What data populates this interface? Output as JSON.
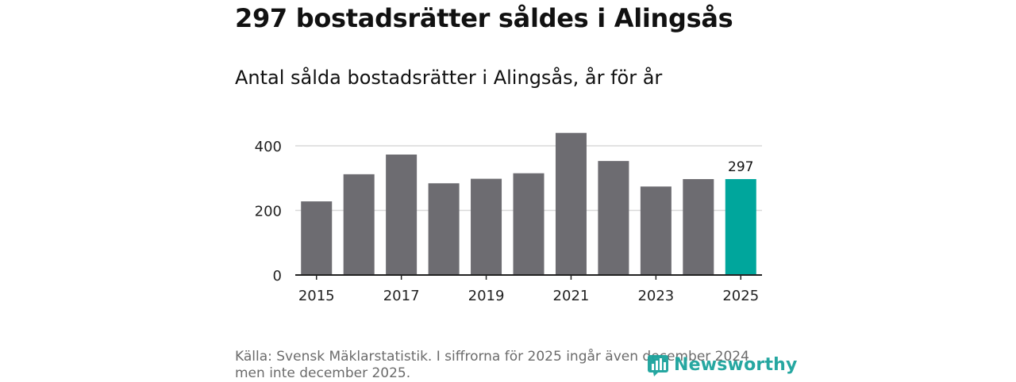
{
  "title": "297 bostadsrätter såldes i Alingsås",
  "subtitle": "Antal sålda bostadsrätter i Alingsås, år för år",
  "source": "Källa: Svensk Mäklarstatistik. I siffrorna för 2025 ingår även december 2024 men inte december 2025.",
  "logo": {
    "text": "Newsworthy",
    "icon": "bar-chart-logo-icon",
    "color": "#1ba39c"
  },
  "chart_data": {
    "type": "bar",
    "categories": [
      "2015",
      "2016",
      "2017",
      "2018",
      "2019",
      "2020",
      "2021",
      "2022",
      "2023",
      "2024",
      "2025"
    ],
    "values": [
      228,
      312,
      373,
      284,
      298,
      315,
      440,
      353,
      274,
      297,
      297
    ],
    "ylim": [
      0,
      400
    ],
    "yticks": [
      0,
      200,
      400
    ],
    "xtick_labels": [
      "2015",
      "2017",
      "2019",
      "2021",
      "2023",
      "2025"
    ],
    "highlight": {
      "category": "2025",
      "value_label": "297"
    },
    "colors": {
      "bar": "#6d6c71",
      "highlight": "#00a69c",
      "grid": "#d9d9d9",
      "axis": "#222222"
    },
    "grid": true
  }
}
